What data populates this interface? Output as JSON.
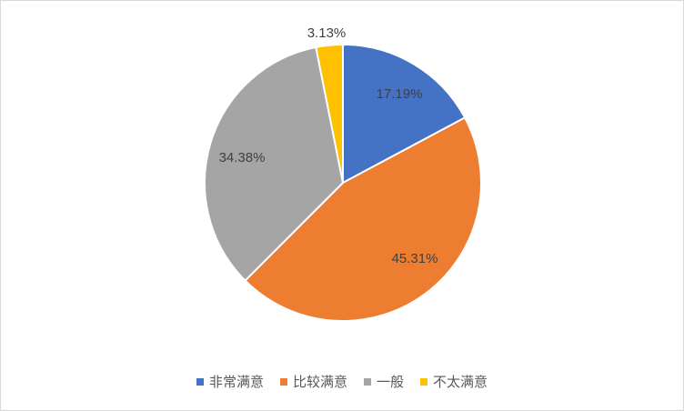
{
  "chart_data": {
    "type": "pie",
    "title": "",
    "categories": [
      "非常满意",
      "比较满意",
      "一般",
      "不太满意"
    ],
    "values": [
      17.19,
      45.31,
      34.38,
      3.13
    ],
    "data_labels": [
      "17.19%",
      "45.31%",
      "34.38%",
      "3.13%"
    ],
    "colors": [
      "#4472C4",
      "#ED7D31",
      "#A5A5A5",
      "#FFC000"
    ],
    "start_angle": "top",
    "direction": "clockwise",
    "legend_position": "bottom"
  }
}
